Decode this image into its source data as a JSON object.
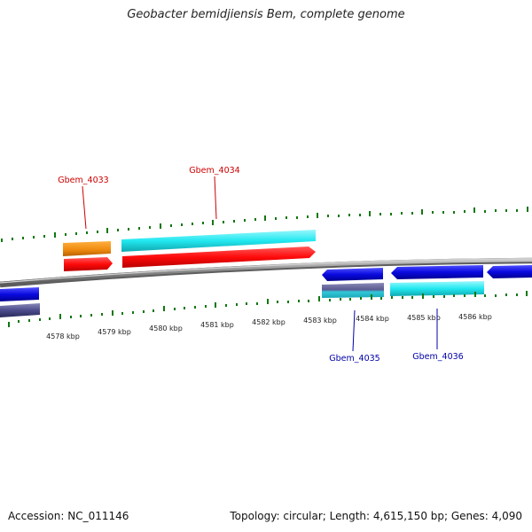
{
  "title": "Geobacter bemidjiensis Bem, complete genome",
  "footer": {
    "accession": "Accession: NC_011146",
    "info": "Topology: circular; Length: 4,615,150 bp; Genes: 4,090"
  },
  "scale": {
    "unit": "kbp",
    "labels": [
      "4578 kbp",
      "4579 kbp",
      "4580 kbp",
      "4581 kbp",
      "4582 kbp",
      "4583 kbp",
      "4584 kbp",
      "4585 kbp",
      "4586 kbp"
    ]
  },
  "genes": [
    {
      "name": "Gbem_4033",
      "strand": "forward",
      "label_color": "#cc0000"
    },
    {
      "name": "Gbem_4034",
      "strand": "forward",
      "label_color": "#cc0000"
    },
    {
      "name": "Gbem_4035",
      "strand": "reverse",
      "label_color": "#0000aa"
    },
    {
      "name": "Gbem_4036",
      "strand": "reverse",
      "label_color": "#0000aa"
    }
  ],
  "colors": {
    "backbone": "#8a8a8a",
    "tick": "#117711",
    "cds": "#ff1010",
    "orange": "#f08c10",
    "cyan": "#22e8f0",
    "blue": "#0a0ae0",
    "purple": "#4b4b8c"
  }
}
